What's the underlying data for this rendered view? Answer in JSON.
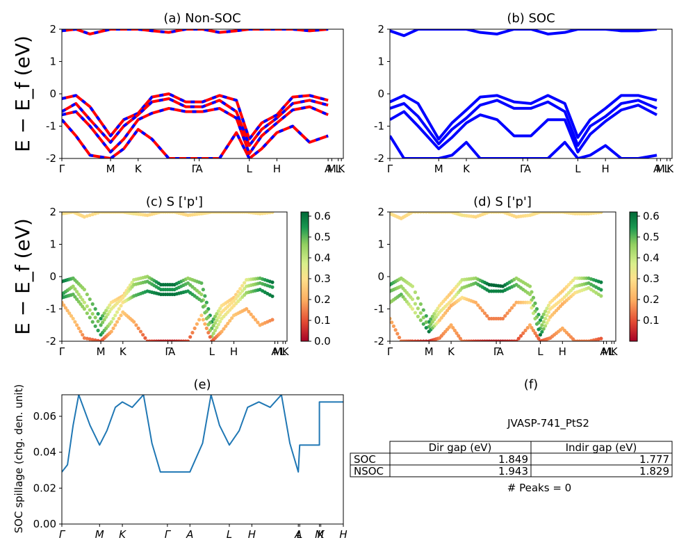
{
  "figure": {
    "ylabel_band": "E − E_f (eV)",
    "ylabel_spillage": "SOC spillage (chg. den. unit)"
  },
  "chart_data": [
    {
      "id": "a",
      "type": "line",
      "title": "(a) Non-SOC",
      "ylim": [
        -2,
        2
      ],
      "yticks": [
        -2,
        -1,
        0,
        1,
        2
      ],
      "xticks": [
        "Γ",
        "M",
        "K",
        "Γ",
        "A",
        "L",
        "H",
        "A",
        "M",
        "L",
        "K"
      ],
      "xtick_pos": [
        0.0,
        0.173,
        0.271,
        0.471,
        0.488,
        0.666,
        0.764,
        0.946,
        0.959,
        0.982,
        0.993
      ],
      "x": [
        0.0,
        0.05,
        0.1,
        0.173,
        0.22,
        0.271,
        0.32,
        0.38,
        0.44,
        0.5,
        0.56,
        0.62,
        0.666,
        0.71,
        0.764,
        0.82,
        0.88,
        0.946
      ],
      "series": [
        {
          "color": "#ff0000",
          "values": [
            -0.15,
            -0.05,
            -0.4,
            -1.3,
            -0.8,
            -0.6,
            -0.1,
            0.0,
            -0.25,
            -0.25,
            -0.05,
            -0.2,
            -1.4,
            -0.9,
            -0.65,
            -0.1,
            -0.05,
            -0.2
          ]
        },
        {
          "color": "#ff0000",
          "values": [
            -0.55,
            -0.3,
            -0.8,
            -1.5,
            -1.0,
            -0.65,
            -0.25,
            -0.15,
            -0.4,
            -0.4,
            -0.2,
            -0.55,
            -1.6,
            -1.1,
            -0.75,
            -0.3,
            -0.2,
            -0.35
          ]
        },
        {
          "color": "#ff0000",
          "values": [
            -0.65,
            -0.55,
            -1.0,
            -1.8,
            -1.4,
            -0.8,
            -0.6,
            -0.45,
            -0.55,
            -0.55,
            -0.45,
            -0.75,
            -1.85,
            -1.3,
            -0.9,
            -0.5,
            -0.4,
            -0.65
          ]
        },
        {
          "color": "#ff0000",
          "values": [
            -0.8,
            -1.3,
            -1.9,
            -2.0,
            -1.7,
            -1.1,
            -1.4,
            -2.0,
            -2.0,
            -2.0,
            -2.0,
            -1.2,
            -2.0,
            -1.7,
            -1.2,
            -1.0,
            -1.5,
            -1.3
          ]
        },
        {
          "color": "#ff0000",
          "values": [
            1.95,
            2.0,
            1.85,
            2.0,
            2.0,
            2.0,
            1.95,
            1.9,
            2.0,
            2.0,
            1.9,
            1.95,
            2.0,
            2.0,
            2.0,
            2.0,
            1.95,
            2.0
          ]
        }
      ]
    },
    {
      "id": "b",
      "type": "line",
      "title": "(b) SOC",
      "ylim": [
        -2,
        2
      ],
      "yticks": [
        -2,
        -1,
        0,
        1,
        2
      ],
      "xticks": [
        "Γ",
        "M",
        "K",
        "Γ",
        "A",
        "L",
        "H",
        "A",
        "M",
        "L",
        "K"
      ],
      "xtick_pos": [
        0.0,
        0.173,
        0.271,
        0.471,
        0.488,
        0.666,
        0.764,
        0.946,
        0.959,
        0.982,
        0.993
      ],
      "x": [
        0.0,
        0.05,
        0.1,
        0.173,
        0.22,
        0.271,
        0.32,
        0.38,
        0.44,
        0.5,
        0.56,
        0.62,
        0.666,
        0.71,
        0.764,
        0.82,
        0.88,
        0.946
      ],
      "series": [
        {
          "color": "#0000ff",
          "values": [
            -0.25,
            -0.05,
            -0.3,
            -1.4,
            -0.9,
            -0.5,
            -0.1,
            -0.05,
            -0.25,
            -0.3,
            -0.05,
            -0.3,
            -1.35,
            -0.8,
            -0.45,
            -0.05,
            -0.05,
            -0.2
          ]
        },
        {
          "color": "#0000ff",
          "values": [
            -0.45,
            -0.3,
            -0.7,
            -1.55,
            -1.1,
            -0.75,
            -0.35,
            -0.2,
            -0.45,
            -0.45,
            -0.25,
            -0.55,
            -1.6,
            -1.0,
            -0.7,
            -0.3,
            -0.2,
            -0.45
          ]
        },
        {
          "color": "#0000ff",
          "values": [
            -0.8,
            -0.55,
            -1.0,
            -1.7,
            -1.35,
            -0.9,
            -0.65,
            -0.8,
            -1.3,
            -1.3,
            -0.8,
            -0.8,
            -1.8,
            -1.25,
            -0.85,
            -0.5,
            -0.35,
            -0.65
          ]
        },
        {
          "color": "#0000ff",
          "values": [
            -1.3,
            -2.0,
            -2.0,
            -2.0,
            -1.9,
            -1.5,
            -2.0,
            -2.0,
            -2.0,
            -2.0,
            -2.0,
            -1.5,
            -2.0,
            -1.9,
            -1.6,
            -2.0,
            -2.0,
            -1.9
          ]
        },
        {
          "color": "#0000ff",
          "values": [
            1.95,
            1.8,
            2.0,
            2.0,
            2.0,
            2.0,
            1.9,
            1.85,
            2.0,
            2.0,
            1.85,
            1.9,
            2.0,
            2.0,
            2.0,
            1.95,
            1.95,
            2.0
          ]
        }
      ]
    },
    {
      "id": "c",
      "type": "scatter",
      "title": "(c)  S ['p']",
      "ylim": [
        -2,
        2
      ],
      "yticks": [
        -2,
        -1,
        0,
        1,
        2
      ],
      "xticks": [
        "Γ",
        "M",
        "K",
        "Γ",
        "A",
        "L",
        "H",
        "A",
        "M",
        "L",
        "K"
      ],
      "xtick_pos": [
        0.0,
        0.173,
        0.271,
        0.471,
        0.488,
        0.666,
        0.764,
        0.946,
        0.959,
        0.982,
        0.993
      ],
      "colorbar_ticks": [
        "0.0",
        "0.1",
        "0.2",
        "0.3",
        "0.4",
        "0.5",
        "0.6"
      ],
      "colorbar_range": [
        0.0,
        0.62
      ],
      "x": [
        0.0,
        0.05,
        0.1,
        0.173,
        0.22,
        0.271,
        0.32,
        0.38,
        0.44,
        0.5,
        0.56,
        0.62,
        0.666,
        0.71,
        0.764,
        0.82,
        0.88,
        0.946
      ],
      "series": [
        {
          "values": [
            -0.15,
            -0.05,
            -0.4,
            -1.3,
            -0.8,
            -0.6,
            -0.1,
            0.0,
            -0.25,
            -0.25,
            -0.05,
            -0.2,
            -1.4,
            -0.9,
            -0.65,
            -0.1,
            -0.05,
            -0.2
          ],
          "weights": [
            0.6,
            0.5,
            0.45,
            0.55,
            0.3,
            0.25,
            0.4,
            0.45,
            0.6,
            0.6,
            0.45,
            0.5,
            0.55,
            0.3,
            0.25,
            0.35,
            0.5,
            0.62
          ]
        },
        {
          "values": [
            -0.55,
            -0.3,
            -0.8,
            -1.5,
            -1.0,
            -0.65,
            -0.25,
            -0.15,
            -0.4,
            -0.4,
            -0.2,
            -0.55,
            -1.6,
            -1.1,
            -0.75,
            -0.3,
            -0.2,
            -0.35
          ],
          "weights": [
            0.55,
            0.45,
            0.4,
            0.5,
            0.35,
            0.3,
            0.45,
            0.5,
            0.55,
            0.55,
            0.5,
            0.45,
            0.5,
            0.3,
            0.3,
            0.4,
            0.5,
            0.55
          ]
        },
        {
          "values": [
            -0.65,
            -0.55,
            -1.0,
            -1.8,
            -1.4,
            -0.8,
            -0.6,
            -0.45,
            -0.55,
            -0.55,
            -0.45,
            -0.75,
            -1.85,
            -1.3,
            -0.9,
            -0.5,
            -0.4,
            -0.65
          ],
          "weights": [
            0.55,
            0.5,
            0.45,
            0.55,
            0.4,
            0.3,
            0.5,
            0.55,
            0.6,
            0.6,
            0.55,
            0.5,
            0.45,
            0.35,
            0.3,
            0.45,
            0.55,
            0.6
          ]
        },
        {
          "values": [
            -0.8,
            -1.3,
            -1.9,
            -2.0,
            -1.7,
            -1.1,
            -1.4,
            -2.0,
            -2.0,
            -2.0,
            -2.0,
            -1.2,
            -2.0,
            -1.7,
            -1.2,
            -1.0,
            -1.5,
            -1.3
          ],
          "weights": [
            0.2,
            0.25,
            0.15,
            0.1,
            0.2,
            0.25,
            0.2,
            0.1,
            0.05,
            0.05,
            0.1,
            0.25,
            0.1,
            0.2,
            0.25,
            0.2,
            0.2,
            0.15
          ]
        },
        {
          "values": [
            1.95,
            2.0,
            1.85,
            2.0,
            2.0,
            2.0,
            1.95,
            1.9,
            2.0,
            2.0,
            1.9,
            1.95,
            2.0,
            2.0,
            2.0,
            2.0,
            1.95,
            2.0
          ],
          "weights": [
            0.3,
            0.3,
            0.28,
            0.3,
            0.3,
            0.3,
            0.32,
            0.28,
            0.3,
            0.3,
            0.28,
            0.3,
            0.3,
            0.3,
            0.3,
            0.3,
            0.3,
            0.3
          ]
        }
      ]
    },
    {
      "id": "d",
      "type": "scatter",
      "title": "(d) S ['p']",
      "ylim": [
        -2,
        2
      ],
      "yticks": [
        -2,
        -1,
        0,
        1,
        2
      ],
      "xticks": [
        "Γ",
        "M",
        "K",
        "Γ",
        "A",
        "L",
        "H",
        "A",
        "M",
        "L",
        "K"
      ],
      "xtick_pos": [
        0.0,
        0.173,
        0.271,
        0.471,
        0.488,
        0.666,
        0.764,
        0.946,
        0.959,
        0.982,
        0.993
      ],
      "colorbar_ticks": [
        "0.1",
        "0.2",
        "0.3",
        "0.4",
        "0.5",
        "0.6"
      ],
      "colorbar_range": [
        0.0,
        0.62
      ],
      "x": [
        0.0,
        0.05,
        0.1,
        0.173,
        0.22,
        0.271,
        0.32,
        0.38,
        0.44,
        0.5,
        0.56,
        0.62,
        0.666,
        0.71,
        0.764,
        0.82,
        0.88,
        0.946
      ],
      "series": [
        {
          "values": [
            -0.25,
            -0.05,
            -0.3,
            -1.4,
            -0.9,
            -0.5,
            -0.1,
            -0.05,
            -0.25,
            -0.3,
            -0.05,
            -0.3,
            -1.35,
            -0.8,
            -0.45,
            -0.05,
            -0.05,
            -0.2
          ],
          "weights": [
            0.55,
            0.45,
            0.4,
            0.55,
            0.3,
            0.25,
            0.4,
            0.45,
            0.62,
            0.62,
            0.45,
            0.45,
            0.55,
            0.3,
            0.25,
            0.35,
            0.5,
            0.6
          ]
        },
        {
          "values": [
            -0.45,
            -0.3,
            -0.7,
            -1.55,
            -1.1,
            -0.75,
            -0.35,
            -0.2,
            -0.45,
            -0.45,
            -0.25,
            -0.55,
            -1.6,
            -1.0,
            -0.7,
            -0.3,
            -0.2,
            -0.45
          ],
          "weights": [
            0.5,
            0.45,
            0.4,
            0.5,
            0.35,
            0.3,
            0.45,
            0.5,
            0.58,
            0.58,
            0.5,
            0.45,
            0.5,
            0.3,
            0.3,
            0.4,
            0.5,
            0.55
          ]
        },
        {
          "values": [
            -0.8,
            -0.55,
            -1.0,
            -1.7,
            -1.35,
            -0.9,
            -0.65,
            -0.8,
            -1.3,
            -1.3,
            -0.8,
            -0.8,
            -1.8,
            -1.25,
            -0.85,
            -0.5,
            -0.35,
            -0.65
          ],
          "weights": [
            0.45,
            0.5,
            0.35,
            0.6,
            0.25,
            0.2,
            0.3,
            0.2,
            0.15,
            0.15,
            0.2,
            0.3,
            0.6,
            0.25,
            0.2,
            0.3,
            0.4,
            0.45
          ]
        },
        {
          "values": [
            -1.3,
            -2.0,
            -2.0,
            -2.0,
            -1.9,
            -1.5,
            -2.0,
            -2.0,
            -2.0,
            -2.0,
            -2.0,
            -1.5,
            -2.0,
            -1.9,
            -1.6,
            -2.0,
            -2.0,
            -1.9
          ],
          "weights": [
            0.2,
            0.15,
            0.1,
            0.05,
            0.15,
            0.2,
            0.15,
            0.08,
            0.05,
            0.05,
            0.08,
            0.2,
            0.1,
            0.15,
            0.2,
            0.15,
            0.15,
            0.1
          ]
        },
        {
          "values": [
            1.95,
            1.8,
            2.0,
            2.0,
            2.0,
            2.0,
            1.9,
            1.85,
            2.0,
            2.0,
            1.85,
            1.9,
            2.0,
            2.0,
            2.0,
            1.95,
            1.95,
            2.0
          ],
          "weights": [
            0.3,
            0.28,
            0.3,
            0.3,
            0.3,
            0.3,
            0.32,
            0.28,
            0.3,
            0.3,
            0.28,
            0.3,
            0.3,
            0.3,
            0.3,
            0.3,
            0.3,
            0.3
          ]
        }
      ]
    },
    {
      "id": "e",
      "type": "line",
      "title": "(e)",
      "ylim": [
        0.0,
        0.072
      ],
      "yticks": [
        0.0,
        0.02,
        0.04,
        0.06
      ],
      "ytick_labels": [
        "0.00",
        "0.02",
        "0.04",
        "0.06"
      ],
      "xticks": [
        "Γ",
        "M",
        "K",
        "Γ",
        "A",
        "L",
        "H",
        "A",
        "L",
        "M",
        "K",
        "H"
      ],
      "xtick_pos": [
        0.0,
        0.134,
        0.215,
        0.375,
        0.455,
        0.595,
        0.675,
        0.84,
        0.845,
        0.915,
        0.92,
        1.0
      ],
      "x": [
        0.0,
        0.02,
        0.04,
        0.06,
        0.1,
        0.134,
        0.16,
        0.19,
        0.215,
        0.25,
        0.29,
        0.32,
        0.35,
        0.375,
        0.455,
        0.5,
        0.53,
        0.56,
        0.595,
        0.63,
        0.66,
        0.7,
        0.74,
        0.78,
        0.81,
        0.84,
        0.845,
        0.915,
        0.915,
        1.0
      ],
      "series": [
        {
          "color": "#1f77b4",
          "values": [
            0.029,
            0.033,
            0.055,
            0.072,
            0.055,
            0.044,
            0.052,
            0.065,
            0.068,
            0.065,
            0.072,
            0.045,
            0.029,
            0.029,
            0.029,
            0.045,
            0.072,
            0.055,
            0.044,
            0.052,
            0.065,
            0.068,
            0.065,
            0.072,
            0.045,
            0.029,
            0.044,
            0.044,
            0.068,
            0.068
          ]
        }
      ]
    }
  ],
  "table_panel": {
    "title": "(f)",
    "caption": "JVASP-741_PtS2",
    "headers": [
      "",
      "Dir gap (eV)",
      "Indir gap (eV)"
    ],
    "rows": [
      [
        "SOC",
        "1.849",
        "1.777"
      ],
      [
        "NSOC",
        "1.943",
        "1.829"
      ]
    ],
    "peaks": "# Peaks = 0"
  }
}
